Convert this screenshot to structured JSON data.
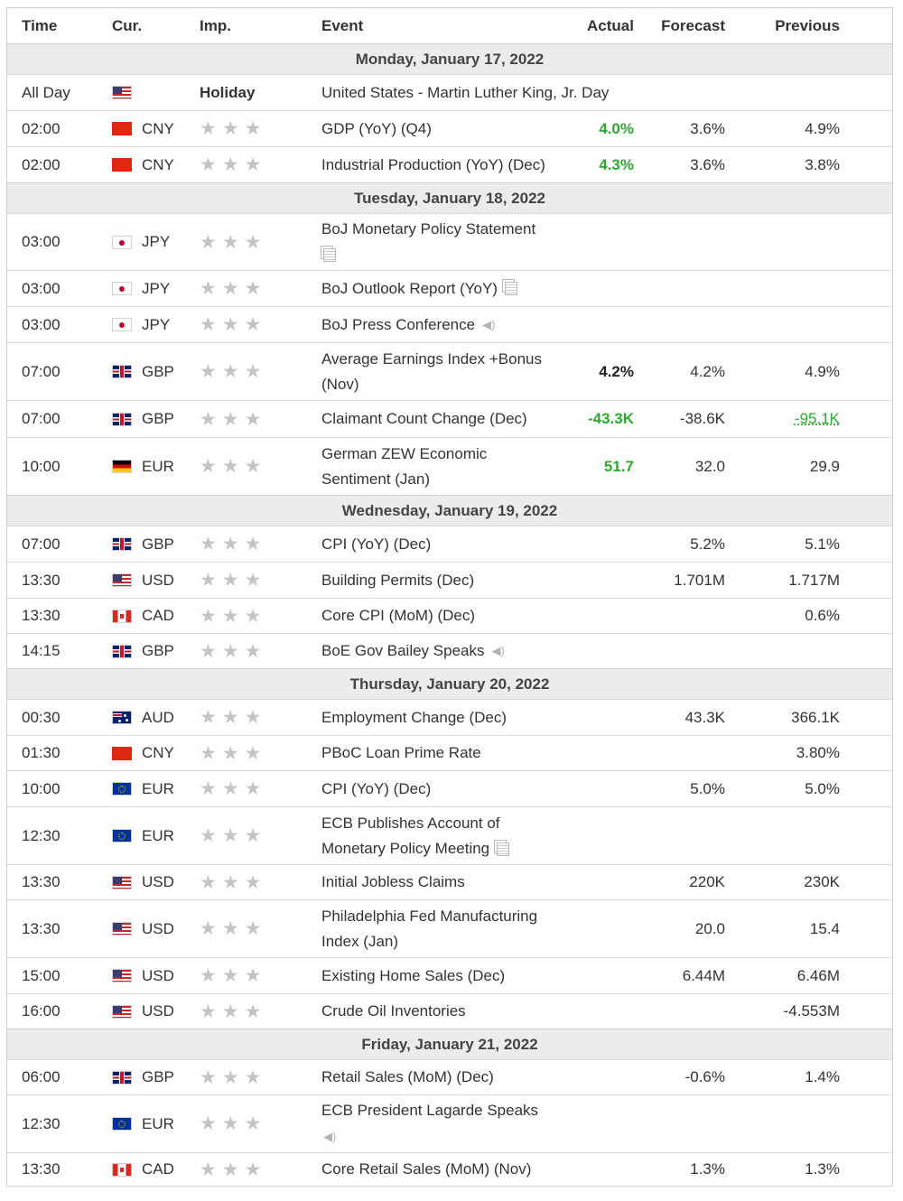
{
  "headers": {
    "time": "Time",
    "cur": "Cur.",
    "imp": "Imp.",
    "event": "Event",
    "actual": "Actual",
    "forecast": "Forecast",
    "previous": "Previous"
  },
  "days": [
    {
      "label": "Monday, January 17, 2022",
      "events": [
        {
          "time": "All Day",
          "flag": "us-flag",
          "currency": "",
          "importance": "Holiday",
          "event": "United States - Martin Luther King, Jr. Day",
          "actual": "",
          "forecast": "",
          "previous": ""
        },
        {
          "time": "02:00",
          "flag": "china-flag",
          "currency": "CNY",
          "importance_stars": 3,
          "event": "GDP (YoY) (Q4)",
          "actual": "4.0%",
          "actual_color": "green",
          "forecast": "3.6%",
          "previous": "4.9%"
        },
        {
          "time": "02:00",
          "flag": "china-flag",
          "currency": "CNY",
          "importance_stars": 3,
          "event": "Industrial Production (YoY) (Dec)",
          "actual": "4.3%",
          "actual_color": "green",
          "forecast": "3.6%",
          "previous": "3.8%"
        }
      ]
    },
    {
      "label": "Tuesday, January 18, 2022",
      "events": [
        {
          "time": "03:00",
          "flag": "japan-flag",
          "currency": "JPY",
          "importance_stars": 3,
          "event": "BoJ Monetary Policy Statement",
          "icon": "document-icon",
          "actual": "",
          "forecast": "",
          "previous": ""
        },
        {
          "time": "03:00",
          "flag": "japan-flag",
          "currency": "JPY",
          "importance_stars": 3,
          "event": "BoJ Outlook Report (YoY)",
          "icon": "document-icon",
          "actual": "",
          "forecast": "",
          "previous": ""
        },
        {
          "time": "03:00",
          "flag": "japan-flag",
          "currency": "JPY",
          "importance_stars": 3,
          "event": "BoJ Press Conference",
          "icon": "speaker-icon",
          "actual": "",
          "forecast": "",
          "previous": ""
        },
        {
          "time": "07:00",
          "flag": "uk-flag",
          "currency": "GBP",
          "importance_stars": 3,
          "event": "Average Earnings Index +Bonus (Nov)",
          "actual": "4.2%",
          "actual_color": "black",
          "forecast": "4.2%",
          "previous": "4.9%"
        },
        {
          "time": "07:00",
          "flag": "uk-flag",
          "currency": "GBP",
          "importance_stars": 3,
          "event": "Claimant Count Change (Dec)",
          "actual": "-43.3K",
          "actual_color": "green",
          "forecast": "-38.6K",
          "previous": "-95.1K",
          "previous_color": "green"
        },
        {
          "time": "10:00",
          "flag": "germany-flag",
          "currency": "EUR",
          "importance_stars": 3,
          "event": "German ZEW Economic Sentiment (Jan)",
          "actual": "51.7",
          "actual_color": "green",
          "forecast": "32.0",
          "previous": "29.9"
        }
      ]
    },
    {
      "label": "Wednesday, January 19, 2022",
      "events": [
        {
          "time": "07:00",
          "flag": "uk-flag",
          "currency": "GBP",
          "importance_stars": 3,
          "event": "CPI (YoY) (Dec)",
          "actual": "",
          "forecast": "5.2%",
          "previous": "5.1%"
        },
        {
          "time": "13:30",
          "flag": "us-flag",
          "currency": "USD",
          "importance_stars": 3,
          "event": "Building Permits (Dec)",
          "actual": "",
          "forecast": "1.701M",
          "previous": "1.717M"
        },
        {
          "time": "13:30",
          "flag": "canada-flag",
          "currency": "CAD",
          "importance_stars": 3,
          "event": "Core CPI (MoM) (Dec)",
          "actual": "",
          "forecast": "",
          "previous": "0.6%"
        },
        {
          "time": "14:15",
          "flag": "uk-flag",
          "currency": "GBP",
          "importance_stars": 3,
          "event": "BoE Gov Bailey Speaks",
          "icon": "speaker-icon",
          "actual": "",
          "forecast": "",
          "previous": ""
        }
      ]
    },
    {
      "label": "Thursday, January 20, 2022",
      "events": [
        {
          "time": "00:30",
          "flag": "australia-flag",
          "currency": "AUD",
          "importance_stars": 3,
          "event": "Employment Change (Dec)",
          "actual": "",
          "forecast": "43.3K",
          "previous": "366.1K"
        },
        {
          "time": "01:30",
          "flag": "china-flag",
          "currency": "CNY",
          "importance_stars": 3,
          "event": "PBoC Loan Prime Rate",
          "actual": "",
          "forecast": "",
          "previous": "3.80%"
        },
        {
          "time": "10:00",
          "flag": "eu-flag",
          "currency": "EUR",
          "importance_stars": 3,
          "event": "CPI (YoY) (Dec)",
          "actual": "",
          "forecast": "5.0%",
          "previous": "5.0%"
        },
        {
          "time": "12:30",
          "flag": "eu-flag",
          "currency": "EUR",
          "importance_stars": 3,
          "event": "ECB Publishes Account of Monetary Policy Meeting",
          "icon": "document-icon",
          "actual": "",
          "forecast": "",
          "previous": ""
        },
        {
          "time": "13:30",
          "flag": "us-flag",
          "currency": "USD",
          "importance_stars": 3,
          "event": "Initial Jobless Claims",
          "actual": "",
          "forecast": "220K",
          "previous": "230K"
        },
        {
          "time": "13:30",
          "flag": "us-flag",
          "currency": "USD",
          "importance_stars": 3,
          "event": "Philadelphia Fed Manufacturing Index (Jan)",
          "actual": "",
          "forecast": "20.0",
          "previous": "15.4"
        },
        {
          "time": "15:00",
          "flag": "us-flag",
          "currency": "USD",
          "importance_stars": 3,
          "event": "Existing Home Sales (Dec)",
          "actual": "",
          "forecast": "6.44M",
          "previous": "6.46M"
        },
        {
          "time": "16:00",
          "flag": "us-flag",
          "currency": "USD",
          "importance_stars": 3,
          "event": "Crude Oil Inventories",
          "actual": "",
          "forecast": "",
          "previous": "-4.553M"
        }
      ]
    },
    {
      "label": "Friday, January 21, 2022",
      "events": [
        {
          "time": "06:00",
          "flag": "uk-flag",
          "currency": "GBP",
          "importance_stars": 3,
          "event": "Retail Sales (MoM) (Dec)",
          "actual": "",
          "forecast": "-0.6%",
          "previous": "1.4%"
        },
        {
          "time": "12:30",
          "flag": "eu-flag",
          "currency": "EUR",
          "importance_stars": 3,
          "event": "ECB President Lagarde Speaks",
          "icon": "speaker-icon",
          "actual": "",
          "forecast": "",
          "previous": ""
        },
        {
          "time": "13:30",
          "flag": "canada-flag",
          "currency": "CAD",
          "importance_stars": 3,
          "event": "Core Retail Sales (MoM) (Nov)",
          "actual": "",
          "forecast": "1.3%",
          "previous": "1.3%"
        }
      ]
    }
  ],
  "colors": {
    "positive": "#2daa2d",
    "star": "#c4c4c4",
    "day_bg": "#ececec"
  }
}
